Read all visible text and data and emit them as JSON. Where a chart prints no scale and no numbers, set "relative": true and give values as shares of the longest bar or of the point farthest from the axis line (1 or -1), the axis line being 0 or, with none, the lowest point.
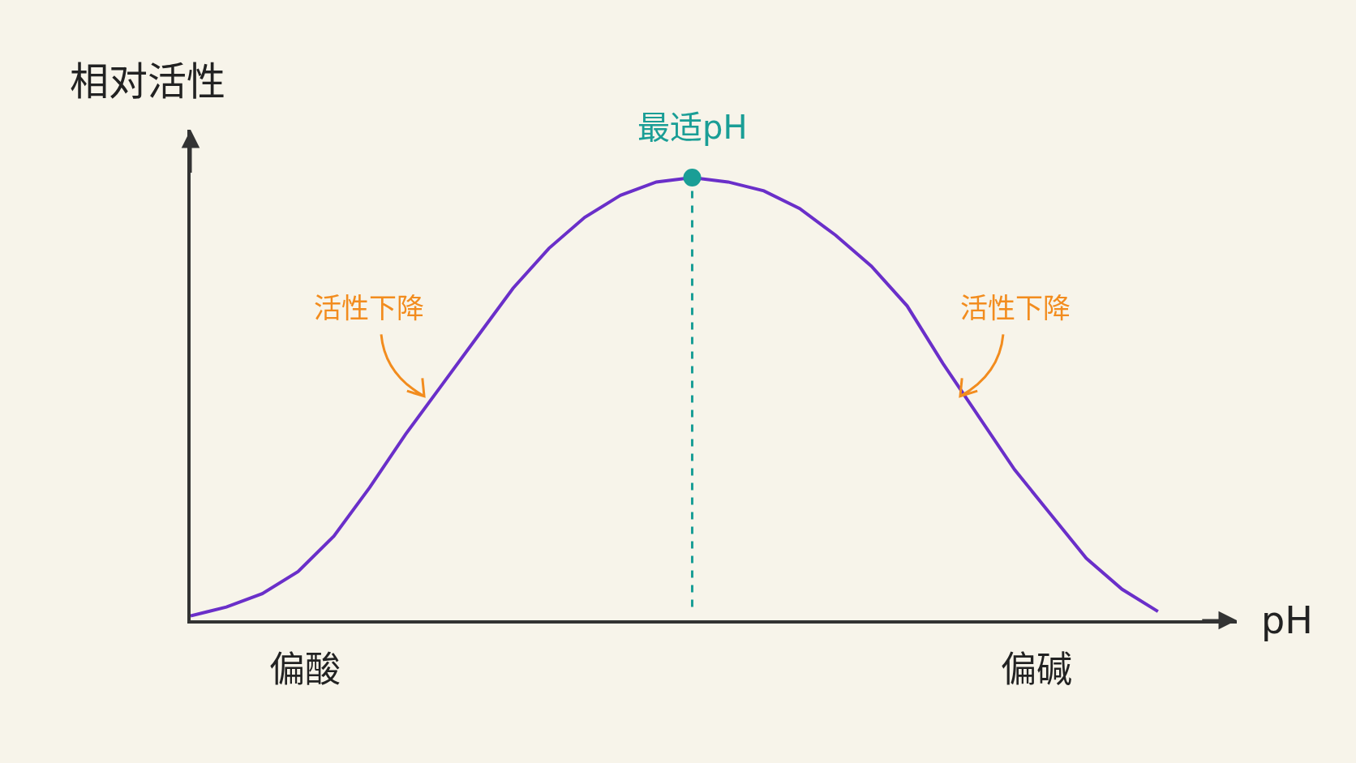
{
  "chart_data": {
    "type": "line",
    "relative": true,
    "xlabel": "pH",
    "ylabel": "相对活性",
    "categories": [
      null,
      null,
      null,
      null,
      null,
      null,
      null,
      null,
      null,
      null,
      null,
      null,
      null,
      null,
      null,
      null,
      null,
      null,
      null,
      null,
      null,
      null,
      null,
      null,
      null,
      null,
      null,
      null
    ],
    "series": [
      {
        "color": "#6a2fc9",
        "values": [
          0.01,
          0.03,
          0.06,
          0.11,
          0.19,
          0.3,
          0.42,
          0.53,
          0.64,
          0.75,
          0.84,
          0.91,
          0.96,
          0.99,
          1.0,
          0.99,
          0.97,
          0.93,
          0.87,
          0.8,
          0.71,
          0.58,
          0.46,
          0.34,
          0.24,
          0.14,
          0.07,
          0.02
        ]
      }
    ],
    "annotations": [
      {
        "text": "最适pH",
        "y": 1.0
      },
      "活性下降",
      "活性下降",
      "偏酸",
      "偏碱"
    ],
    "grid": false,
    "legend": false
  }
}
